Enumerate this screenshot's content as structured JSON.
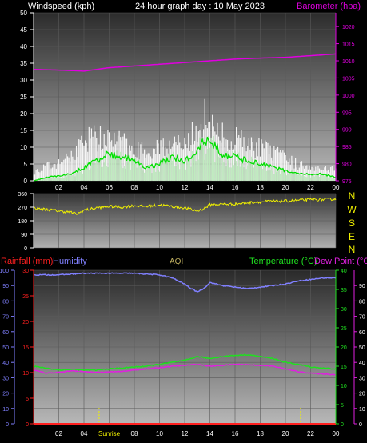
{
  "header": {
    "left_label": "Windspeed (kph)",
    "title": "24 hour graph day : 10 May 2023",
    "right_label": "Barometer (hpa)"
  },
  "colors": {
    "background": "#000000",
    "axis": "#ffffff",
    "wind_gust": "#ffffff",
    "wind_avg": "#e8e8e8",
    "wind_avg_line": "#00e000",
    "barometer": "#e000e0",
    "direction": "#f0f000",
    "rainfall": "#ff2020",
    "humidity": "#8080ff",
    "aqi": "#c0b060",
    "temperature": "#20e020",
    "dewpoint": "#e020e0",
    "sun_marker": "#f0f000"
  },
  "panel3": {
    "rain_label": "Rainfall (mm)",
    "humidity_label": "Humidity",
    "aqi_label": "AQI",
    "temp_label": "Temperature (°C)",
    "dew_label": "Dew Point (°C)",
    "sunrise_label": "Sunrise"
  },
  "compass": [
    "N",
    "W",
    "S",
    "E",
    "N"
  ],
  "chart_data": [
    {
      "type": "line",
      "name": "wind-barometer",
      "x_ticks": [
        "02",
        "04",
        "06",
        "08",
        "10",
        "12",
        "14",
        "16",
        "18",
        "20",
        "22",
        "00"
      ],
      "x_range_hours": [
        0,
        24
      ],
      "ylim_left": [
        0,
        50
      ],
      "yticks_left": [
        0,
        5,
        10,
        15,
        20,
        25,
        30,
        35,
        40,
        45,
        50
      ],
      "ylim_right": [
        975,
        1024
      ],
      "yticks_right": [
        975,
        980,
        985,
        990,
        995,
        1000,
        1005,
        1010,
        1015,
        1020
      ],
      "grid": true,
      "series": [
        {
          "name": "Windspeed (kph)",
          "axis": "left",
          "x": [
            0,
            1,
            2,
            3,
            3.5,
            4,
            5,
            6,
            7,
            8,
            9,
            10,
            11,
            12,
            12.5,
            13,
            13.5,
            14,
            14.5,
            15,
            16,
            17,
            18,
            19,
            20,
            21,
            22,
            23,
            24
          ],
          "values": [
            0,
            1,
            1.5,
            2,
            3,
            4,
            6,
            8,
            7,
            6,
            4,
            5,
            7,
            6,
            7,
            9,
            12,
            11,
            10,
            8,
            7,
            6,
            5,
            4,
            3,
            2,
            2,
            2,
            1
          ]
        },
        {
          "name": "Wind gust",
          "axis": "left",
          "x": [
            0,
            1,
            2,
            3,
            3.5,
            4,
            5,
            6,
            7,
            8,
            9,
            10,
            11,
            12,
            12.5,
            13,
            13.5,
            14,
            14.5,
            15,
            16,
            17,
            18,
            19,
            20,
            21,
            22,
            23,
            24
          ],
          "values": [
            3,
            5,
            6,
            9,
            12,
            15,
            16,
            14,
            14,
            12,
            10,
            13,
            13,
            12,
            15,
            20,
            24,
            19,
            17,
            16,
            15,
            13,
            12,
            10,
            8,
            6,
            5,
            5,
            4
          ]
        },
        {
          "name": "Barometer (hpa)",
          "axis": "right",
          "x": [
            0,
            2,
            4,
            6,
            8,
            10,
            12,
            14,
            16,
            18,
            20,
            22,
            24
          ],
          "values": [
            1007.5,
            1007.3,
            1007.0,
            1008.0,
            1008.5,
            1009.0,
            1009.5,
            1010.0,
            1010.5,
            1010.8,
            1011.0,
            1011.5,
            1012.0
          ]
        }
      ]
    },
    {
      "type": "line",
      "name": "wind-direction",
      "x_range_hours": [
        0,
        24
      ],
      "ylim": [
        0,
        360
      ],
      "yticks": [
        0,
        90,
        180,
        270,
        360
      ],
      "series": [
        {
          "name": "Wind direction",
          "x": [
            0,
            1,
            2,
            3,
            3.5,
            4,
            5,
            6,
            7,
            8,
            9,
            10,
            11,
            12,
            12.5,
            13,
            13.5,
            14,
            15,
            16,
            17,
            18,
            19,
            20,
            21,
            22,
            23,
            24
          ],
          "values": [
            265,
            255,
            245,
            235,
            225,
            250,
            265,
            275,
            270,
            280,
            275,
            285,
            275,
            265,
            255,
            245,
            260,
            285,
            290,
            290,
            300,
            305,
            310,
            310,
            315,
            320,
            320,
            325
          ]
        }
      ]
    },
    {
      "type": "line",
      "name": "temp-humidity-rain",
      "x_ticks": [
        "02",
        "04",
        "06",
        "08",
        "10",
        "12",
        "14",
        "16",
        "18",
        "20",
        "22",
        "00"
      ],
      "x_range_hours": [
        0,
        24
      ],
      "ylim_humidity": [
        0,
        100
      ],
      "yticks_humidity": [
        0,
        10,
        20,
        30,
        40,
        50,
        60,
        70,
        80,
        90,
        100
      ],
      "ylim_rain": [
        0,
        30
      ],
      "yticks_rain": [
        0,
        5,
        10,
        15,
        20,
        25,
        30
      ],
      "ylim_temp": [
        0,
        40
      ],
      "yticks_temp": [
        0,
        5,
        10,
        15,
        20,
        25,
        30,
        35,
        40
      ],
      "ylim_dew": [
        0,
        100
      ],
      "yticks_dew": [
        0,
        10,
        20,
        30,
        40,
        50,
        60,
        70,
        80,
        90
      ],
      "sun_markers_hours": [
        5.2,
        21.2
      ],
      "series": [
        {
          "name": "Humidity",
          "axis": "humidity",
          "x": [
            0,
            2,
            4,
            6,
            8,
            10,
            11,
            12,
            12.5,
            13,
            13.5,
            14,
            15,
            16,
            17,
            18,
            19,
            20,
            21,
            22,
            23,
            24
          ],
          "values": [
            97,
            97,
            98,
            98,
            98,
            97,
            95,
            91,
            88,
            86,
            88,
            92,
            90,
            89,
            88,
            89,
            90,
            91,
            93,
            94,
            95,
            95
          ]
        },
        {
          "name": "Temperature (°C)",
          "axis": "temp",
          "x": [
            0,
            1,
            2,
            3,
            4,
            5,
            6,
            7,
            8,
            9,
            10,
            11,
            12,
            13,
            14,
            15,
            16,
            17,
            18,
            19,
            20,
            21,
            22,
            23,
            24
          ],
          "values": [
            15,
            14.5,
            14,
            14.2,
            14,
            14,
            14.3,
            14.5,
            14.8,
            15,
            15.5,
            16,
            16.5,
            17.5,
            17,
            17.5,
            17.8,
            18,
            17.5,
            17,
            16,
            15.5,
            14.8,
            14.5,
            14.3
          ]
        },
        {
          "name": "Dew Point (°C)",
          "axis": "temp",
          "x": [
            0,
            1,
            2,
            3,
            4,
            5,
            6,
            7,
            8,
            9,
            10,
            11,
            12,
            13,
            14,
            15,
            16,
            17,
            18,
            19,
            20,
            21,
            22,
            23,
            24
          ],
          "values": [
            14,
            13.2,
            13.4,
            13.8,
            13.6,
            13.4,
            13.5,
            13.6,
            14,
            14.3,
            14.6,
            15,
            15.2,
            15.5,
            15,
            15.2,
            15.5,
            15.4,
            15.2,
            15,
            14.3,
            13.6,
            13.2,
            13,
            12.8
          ]
        },
        {
          "name": "Rainfall (mm)",
          "axis": "rain",
          "x": [
            0,
            24
          ],
          "values": [
            0,
            0
          ]
        }
      ]
    }
  ]
}
